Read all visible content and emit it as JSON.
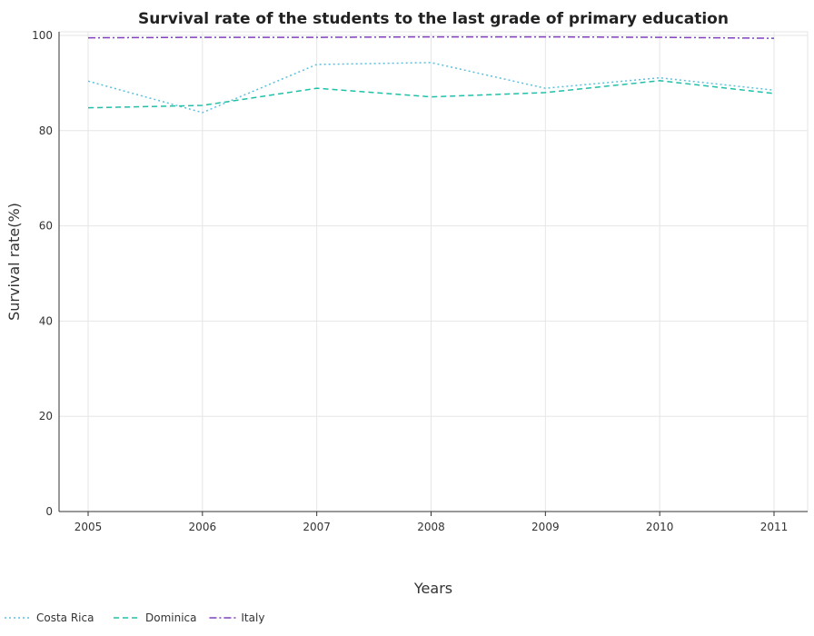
{
  "chart_data": {
    "type": "line",
    "title": "Survival rate of the students to the last grade of primary education",
    "xlabel": "Years",
    "ylabel": "Survival rate(%)",
    "x": [
      "2005",
      "2006",
      "2007",
      "2008",
      "2009",
      "2010",
      "2011"
    ],
    "ylim": [
      0,
      100
    ],
    "yticks": [
      0,
      20,
      40,
      60,
      80,
      100
    ],
    "grid": true,
    "legend_position": "bottom-left",
    "series": [
      {
        "name": "Costa Rica",
        "color": "#5bc0de",
        "dash": "dotted",
        "values": [
          90.4,
          83.8,
          93.9,
          94.3,
          88.9,
          91.1,
          88.5
        ]
      },
      {
        "name": "Dominica",
        "color": "#20c0a8",
        "dash": "dashed",
        "values": [
          84.8,
          85.3,
          88.9,
          87.1,
          88.0,
          90.5,
          87.8
        ]
      },
      {
        "name": "Italy",
        "color": "#8040c0",
        "dash": "dashdot",
        "values": [
          99.5,
          99.6,
          99.6,
          99.7,
          99.7,
          99.6,
          99.4
        ]
      }
    ]
  }
}
